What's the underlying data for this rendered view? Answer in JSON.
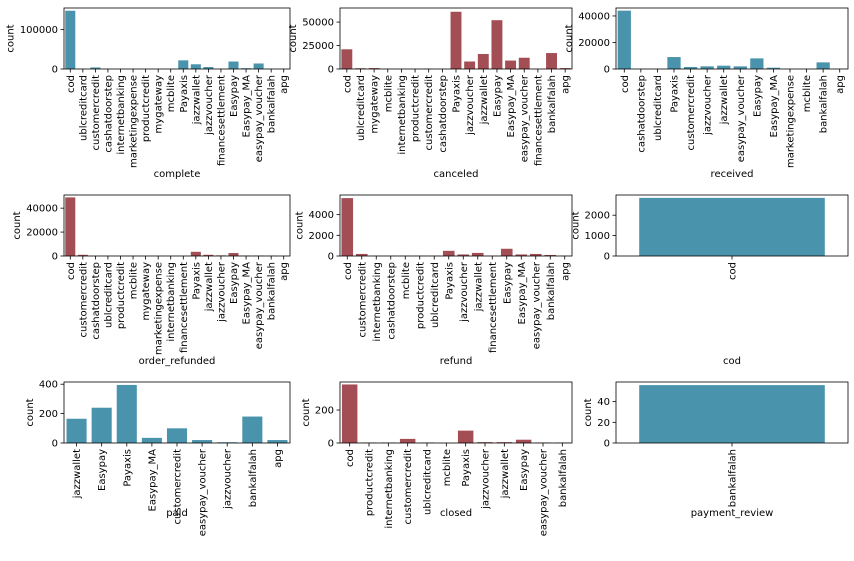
{
  "chart_data": [
    {
      "type": "bar",
      "xlabel": "complete",
      "ylabel": "count",
      "color": "#4a93ad",
      "categories": [
        "cod",
        "ublcreditcard",
        "customercredit",
        "cashatdoorstep",
        "internetbanking",
        "marketingexpense",
        "productcredit",
        "mygateway",
        "mcblite",
        "Payaxis",
        "jazzwallet",
        "jazzvoucher",
        "financesettlement",
        "Easypay",
        "Easypay_MA",
        "easypay_voucher",
        "bankalfalah",
        "apg"
      ],
      "values": [
        148000,
        500,
        4000,
        300,
        200,
        100,
        200,
        100,
        100,
        22000,
        12000,
        5000,
        200,
        19000,
        2000,
        14000,
        500,
        300
      ],
      "ylim": [
        0,
        155000
      ],
      "yticks": [
        0,
        100000
      ]
    },
    {
      "type": "bar",
      "xlabel": "canceled",
      "ylabel": "count",
      "color": "#a34e55",
      "categories": [
        "cod",
        "ublcreditcard",
        "mygateway",
        "mcblite",
        "internetbanking",
        "productcredit",
        "customercredit",
        "cashatdoorstep",
        "Payaxis",
        "jazzvoucher",
        "jazzwallet",
        "Easypay",
        "Easypay_MA",
        "easypay_voucher",
        "financesettlement",
        "bankalfalah",
        "apg"
      ],
      "values": [
        21000,
        800,
        1000,
        200,
        200,
        100,
        300,
        100,
        61000,
        8000,
        16000,
        52000,
        9000,
        12000,
        100,
        17000,
        1000
      ],
      "ylim": [
        0,
        65000
      ],
      "yticks": [
        0,
        25000,
        50000
      ]
    },
    {
      "type": "bar",
      "xlabel": "received",
      "ylabel": "count",
      "color": "#4a93ad",
      "categories": [
        "cod",
        "cashatdoorstep",
        "ublcreditcard",
        "Payaxis",
        "customercredit",
        "jazzvoucher",
        "jazzwallet",
        "easypay_voucher",
        "Easypay",
        "Easypay_MA",
        "marketingexpense",
        "mcblite",
        "bankalfalah",
        "apg"
      ],
      "values": [
        44000,
        100,
        100,
        9000,
        1500,
        2000,
        2500,
        2000,
        8000,
        1000,
        50,
        50,
        5000,
        100
      ],
      "ylim": [
        0,
        46000
      ],
      "yticks": [
        0,
        20000,
        40000
      ]
    },
    {
      "type": "bar",
      "xlabel": "order_refunded",
      "ylabel": "count",
      "color": "#a34e55",
      "categories": [
        "cod",
        "customercredit",
        "cashatdoorstep",
        "ublcreditcard",
        "productcredit",
        "mcblite",
        "mygateway",
        "marketingexpense",
        "internetbanking",
        "financesettlement",
        "Payaxis",
        "jazzwallet",
        "jazzvoucher",
        "Easypay",
        "Easypay_MA",
        "easypay_voucher",
        "bankalfalah",
        "apg"
      ],
      "values": [
        49000,
        1000,
        100,
        100,
        50,
        50,
        50,
        50,
        50,
        50,
        3500,
        1000,
        500,
        2500,
        300,
        300,
        200,
        50
      ],
      "ylim": [
        0,
        51000
      ],
      "yticks": [
        0,
        20000,
        40000
      ]
    },
    {
      "type": "bar",
      "xlabel": "refund",
      "ylabel": "count",
      "color": "#a34e55",
      "categories": [
        "cod",
        "customercredit",
        "internetbanking",
        "cashatdoorstep",
        "mcblite",
        "productcredit",
        "ublcreditcard",
        "Payaxis",
        "jazzvoucher",
        "jazzwallet",
        "financesettlement",
        "Easypay",
        "Easypay_MA",
        "easypay_voucher",
        "bankalfalah",
        "apg"
      ],
      "values": [
        5600,
        200,
        20,
        20,
        20,
        20,
        20,
        500,
        150,
        300,
        20,
        700,
        150,
        200,
        100,
        20
      ],
      "ylim": [
        0,
        5900
      ],
      "yticks": [
        0,
        2000,
        4000
      ]
    },
    {
      "type": "bar",
      "xlabel": "cod",
      "ylabel": "count",
      "color": "#4a93ad",
      "categories": [
        "cod"
      ],
      "values": [
        2850
      ],
      "ylim": [
        0,
        2990
      ],
      "yticks": [
        0,
        1000,
        2000
      ]
    },
    {
      "type": "bar",
      "xlabel": "paid",
      "ylabel": "count",
      "color": "#4a93ad",
      "categories": [
        "jazzwallet",
        "Easypay",
        "Payaxis",
        "Easypay_MA",
        "customercredit",
        "easypay_voucher",
        "jazzvoucher",
        "bankalfalah",
        "apg"
      ],
      "values": [
        165,
        240,
        395,
        35,
        100,
        20,
        5,
        180,
        20
      ],
      "ylim": [
        0,
        415
      ],
      "yticks": [
        0,
        200,
        400
      ]
    },
    {
      "type": "bar",
      "xlabel": "closed",
      "ylabel": "count",
      "color": "#a34e55",
      "categories": [
        "cod",
        "productcredit",
        "internetbanking",
        "customercredit",
        "ublcreditcard",
        "mcblite",
        "Payaxis",
        "jazzvoucher",
        "jazzwallet",
        "Easypay",
        "easypay_voucher",
        "bankalfalah"
      ],
      "values": [
        355,
        3,
        3,
        25,
        3,
        1,
        75,
        5,
        5,
        20,
        3,
        3
      ],
      "ylim": [
        0,
        370
      ],
      "yticks": [
        0,
        200
      ]
    },
    {
      "type": "bar",
      "xlabel": "payment_review",
      "ylabel": "count",
      "color": "#4a93ad",
      "categories": [
        "bankalfalah"
      ],
      "values": [
        56
      ],
      "ylim": [
        0,
        59
      ],
      "yticks": [
        0,
        20,
        40
      ]
    }
  ]
}
